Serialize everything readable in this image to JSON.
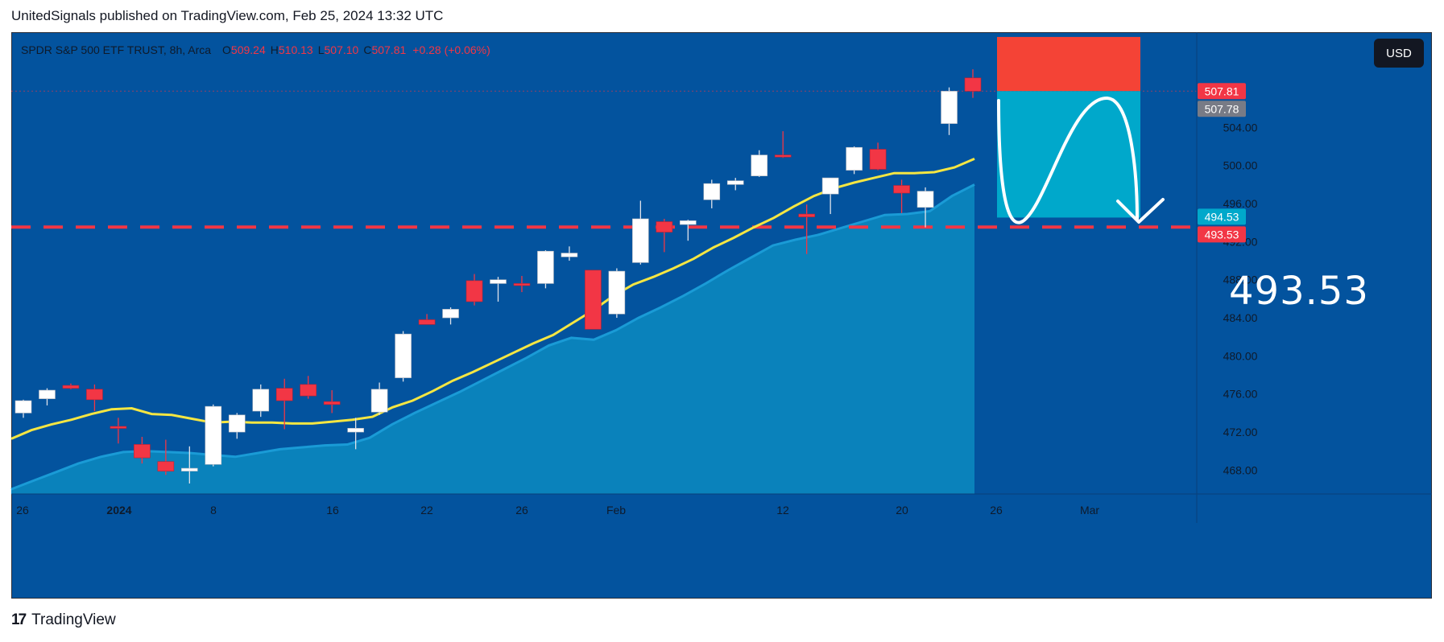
{
  "header": {
    "published_text": "UnitedSignals published on TradingView.com, Feb 25, 2024 13:32 UTC"
  },
  "legend": {
    "symbol": "SPDR S&P 500 ETF TRUST, 8h, Arca",
    "o_key": "O",
    "o_val": "509.24",
    "h_key": "H",
    "h_val": "510.13",
    "l_key": "L",
    "l_val": "507.10",
    "c_key": "C",
    "c_val": "507.81",
    "change": "+0.28 (+0.06%)"
  },
  "currency_button": "USD",
  "annotation_big_label": "493.53",
  "footer": {
    "brand": "TradingView",
    "mark": "17"
  },
  "colors": {
    "background": "#03539e",
    "up_candle": "#ffffff",
    "down_candle": "#f23645",
    "ma_line": "#f5e642",
    "area_fill": "#0b85bd",
    "dashed_level": "#f23645",
    "stop_box": "#f44336",
    "target_box": "#00a8cb"
  },
  "chart_data": {
    "type": "candlestick",
    "title": "SPDR S&P 500 ETF TRUST, 8h, Arca",
    "ylim": [
      465.5,
      514.0
    ],
    "y_ticks": [
      "468.00",
      "472.00",
      "476.00",
      "480.00",
      "484.00",
      "488.00",
      "492.00",
      "496.00",
      "500.00",
      "504.00"
    ],
    "x_ticks": [
      "26",
      "2024",
      "8",
      "16",
      "22",
      "26",
      "Feb",
      "12",
      "20",
      "26",
      "Mar"
    ],
    "price_badges": [
      {
        "text": "507.81",
        "color": "#f23645"
      },
      {
        "text": "507.78",
        "color": "#787b86"
      },
      {
        "text": "494.53",
        "color": "#00a8cb"
      },
      {
        "text": "493.53",
        "color": "#f23645"
      }
    ],
    "candles": [
      {
        "o": 474.0,
        "h": 475.4,
        "l": 473.5,
        "c": 475.3
      },
      {
        "o": 475.5,
        "h": 476.6,
        "l": 474.8,
        "c": 476.4
      },
      {
        "o": 476.9,
        "h": 477.1,
        "l": 476.5,
        "c": 476.6
      },
      {
        "o": 476.5,
        "h": 477.0,
        "l": 474.2,
        "c": 475.4
      },
      {
        "o": 472.6,
        "h": 473.5,
        "l": 470.8,
        "c": 472.4
      },
      {
        "o": 470.7,
        "h": 471.5,
        "l": 468.7,
        "c": 469.3
      },
      {
        "o": 468.9,
        "h": 471.2,
        "l": 467.5,
        "c": 467.9
      },
      {
        "o": 467.9,
        "h": 470.5,
        "l": 466.6,
        "c": 468.2
      },
      {
        "o": 468.6,
        "h": 474.9,
        "l": 468.4,
        "c": 474.7
      },
      {
        "o": 472.0,
        "h": 474.0,
        "l": 471.3,
        "c": 473.8
      },
      {
        "o": 474.2,
        "h": 477.0,
        "l": 473.6,
        "c": 476.5
      },
      {
        "o": 476.6,
        "h": 477.6,
        "l": 472.3,
        "c": 475.3
      },
      {
        "o": 477.0,
        "h": 477.9,
        "l": 475.5,
        "c": 475.8
      },
      {
        "o": 475.2,
        "h": 476.4,
        "l": 474.0,
        "c": 474.9
      },
      {
        "o": 472.0,
        "h": 473.5,
        "l": 470.2,
        "c": 472.4
      },
      {
        "o": 474.1,
        "h": 477.2,
        "l": 473.8,
        "c": 476.5
      },
      {
        "o": 477.7,
        "h": 482.6,
        "l": 477.3,
        "c": 482.3
      },
      {
        "o": 483.8,
        "h": 484.4,
        "l": 483.3,
        "c": 483.3
      },
      {
        "o": 484.0,
        "h": 485.1,
        "l": 483.3,
        "c": 484.9
      },
      {
        "o": 487.9,
        "h": 488.6,
        "l": 485.3,
        "c": 485.7
      },
      {
        "o": 487.6,
        "h": 488.3,
        "l": 485.7,
        "c": 488.0
      },
      {
        "o": 487.6,
        "h": 488.4,
        "l": 486.7,
        "c": 487.5
      },
      {
        "o": 487.6,
        "h": 491.1,
        "l": 487.1,
        "c": 491.0
      },
      {
        "o": 490.4,
        "h": 491.5,
        "l": 490.0,
        "c": 490.8
      },
      {
        "o": 489.0,
        "h": 489.0,
        "l": 482.8,
        "c": 482.8
      },
      {
        "o": 484.4,
        "h": 489.2,
        "l": 484.0,
        "c": 488.9
      },
      {
        "o": 489.8,
        "h": 496.3,
        "l": 489.6,
        "c": 494.4
      },
      {
        "o": 494.1,
        "h": 494.4,
        "l": 490.9,
        "c": 493.0
      },
      {
        "o": 493.8,
        "h": 494.3,
        "l": 492.1,
        "c": 494.2
      },
      {
        "o": 496.4,
        "h": 498.5,
        "l": 495.5,
        "c": 498.1
      },
      {
        "o": 498.0,
        "h": 498.7,
        "l": 497.4,
        "c": 498.4
      },
      {
        "o": 498.9,
        "h": 501.6,
        "l": 498.8,
        "c": 501.1
      },
      {
        "o": 501.1,
        "h": 503.6,
        "l": 500.8,
        "c": 500.9
      },
      {
        "o": 494.9,
        "h": 495.9,
        "l": 490.7,
        "c": 494.6
      },
      {
        "o": 497.0,
        "h": 498.7,
        "l": 494.9,
        "c": 498.7
      },
      {
        "o": 499.5,
        "h": 502.0,
        "l": 499.1,
        "c": 501.9
      },
      {
        "o": 501.7,
        "h": 502.4,
        "l": 499.5,
        "c": 499.6
      },
      {
        "o": 497.9,
        "h": 498.5,
        "l": 495.0,
        "c": 497.1
      },
      {
        "o": 495.6,
        "h": 497.7,
        "l": 493.5,
        "c": 497.3
      },
      {
        "o": 504.4,
        "h": 508.2,
        "l": 503.2,
        "c": 507.8
      },
      {
        "o": 509.2,
        "h": 510.1,
        "l": 507.1,
        "c": 507.8
      }
    ],
    "ma_values": [
      471.3,
      472.2,
      472.8,
      473.3,
      473.9,
      474.4,
      474.5,
      473.9,
      473.8,
      473.4,
      473.0,
      473.1,
      473.0,
      473.0,
      472.9,
      472.9,
      473.1,
      473.3,
      473.6,
      474.6,
      475.3,
      476.3,
      477.4,
      478.3,
      479.3,
      480.3,
      481.3,
      482.2,
      483.5,
      484.8,
      486.3,
      487.5,
      488.3,
      489.2,
      490.2,
      491.4,
      492.4,
      493.5,
      494.5,
      495.7,
      496.8,
      497.6,
      498.2,
      498.7,
      499.2,
      499.2,
      499.3,
      499.8,
      500.7
    ],
    "area_values": [
      466.0,
      466.9,
      467.8,
      468.7,
      469.4,
      469.9,
      470.0,
      469.9,
      469.8,
      469.6,
      469.4,
      469.8,
      470.2,
      470.4,
      470.6,
      470.7,
      471.4,
      472.8,
      474.0,
      475.1,
      476.2,
      477.4,
      478.6,
      479.8,
      481.1,
      481.9,
      481.7,
      482.7,
      484.0,
      485.1,
      486.3,
      487.6,
      489.0,
      490.3,
      491.6,
      492.2,
      492.7,
      493.4,
      494.1,
      494.8,
      494.9,
      495.2,
      496.8,
      498.0
    ],
    "levels": [
      {
        "value": 493.53,
        "style": "dashed"
      },
      {
        "value": 507.81,
        "style": "dotted"
      }
    ],
    "position_tool": {
      "entry": 507.81,
      "stop": 513.5,
      "target": 494.53
    }
  }
}
